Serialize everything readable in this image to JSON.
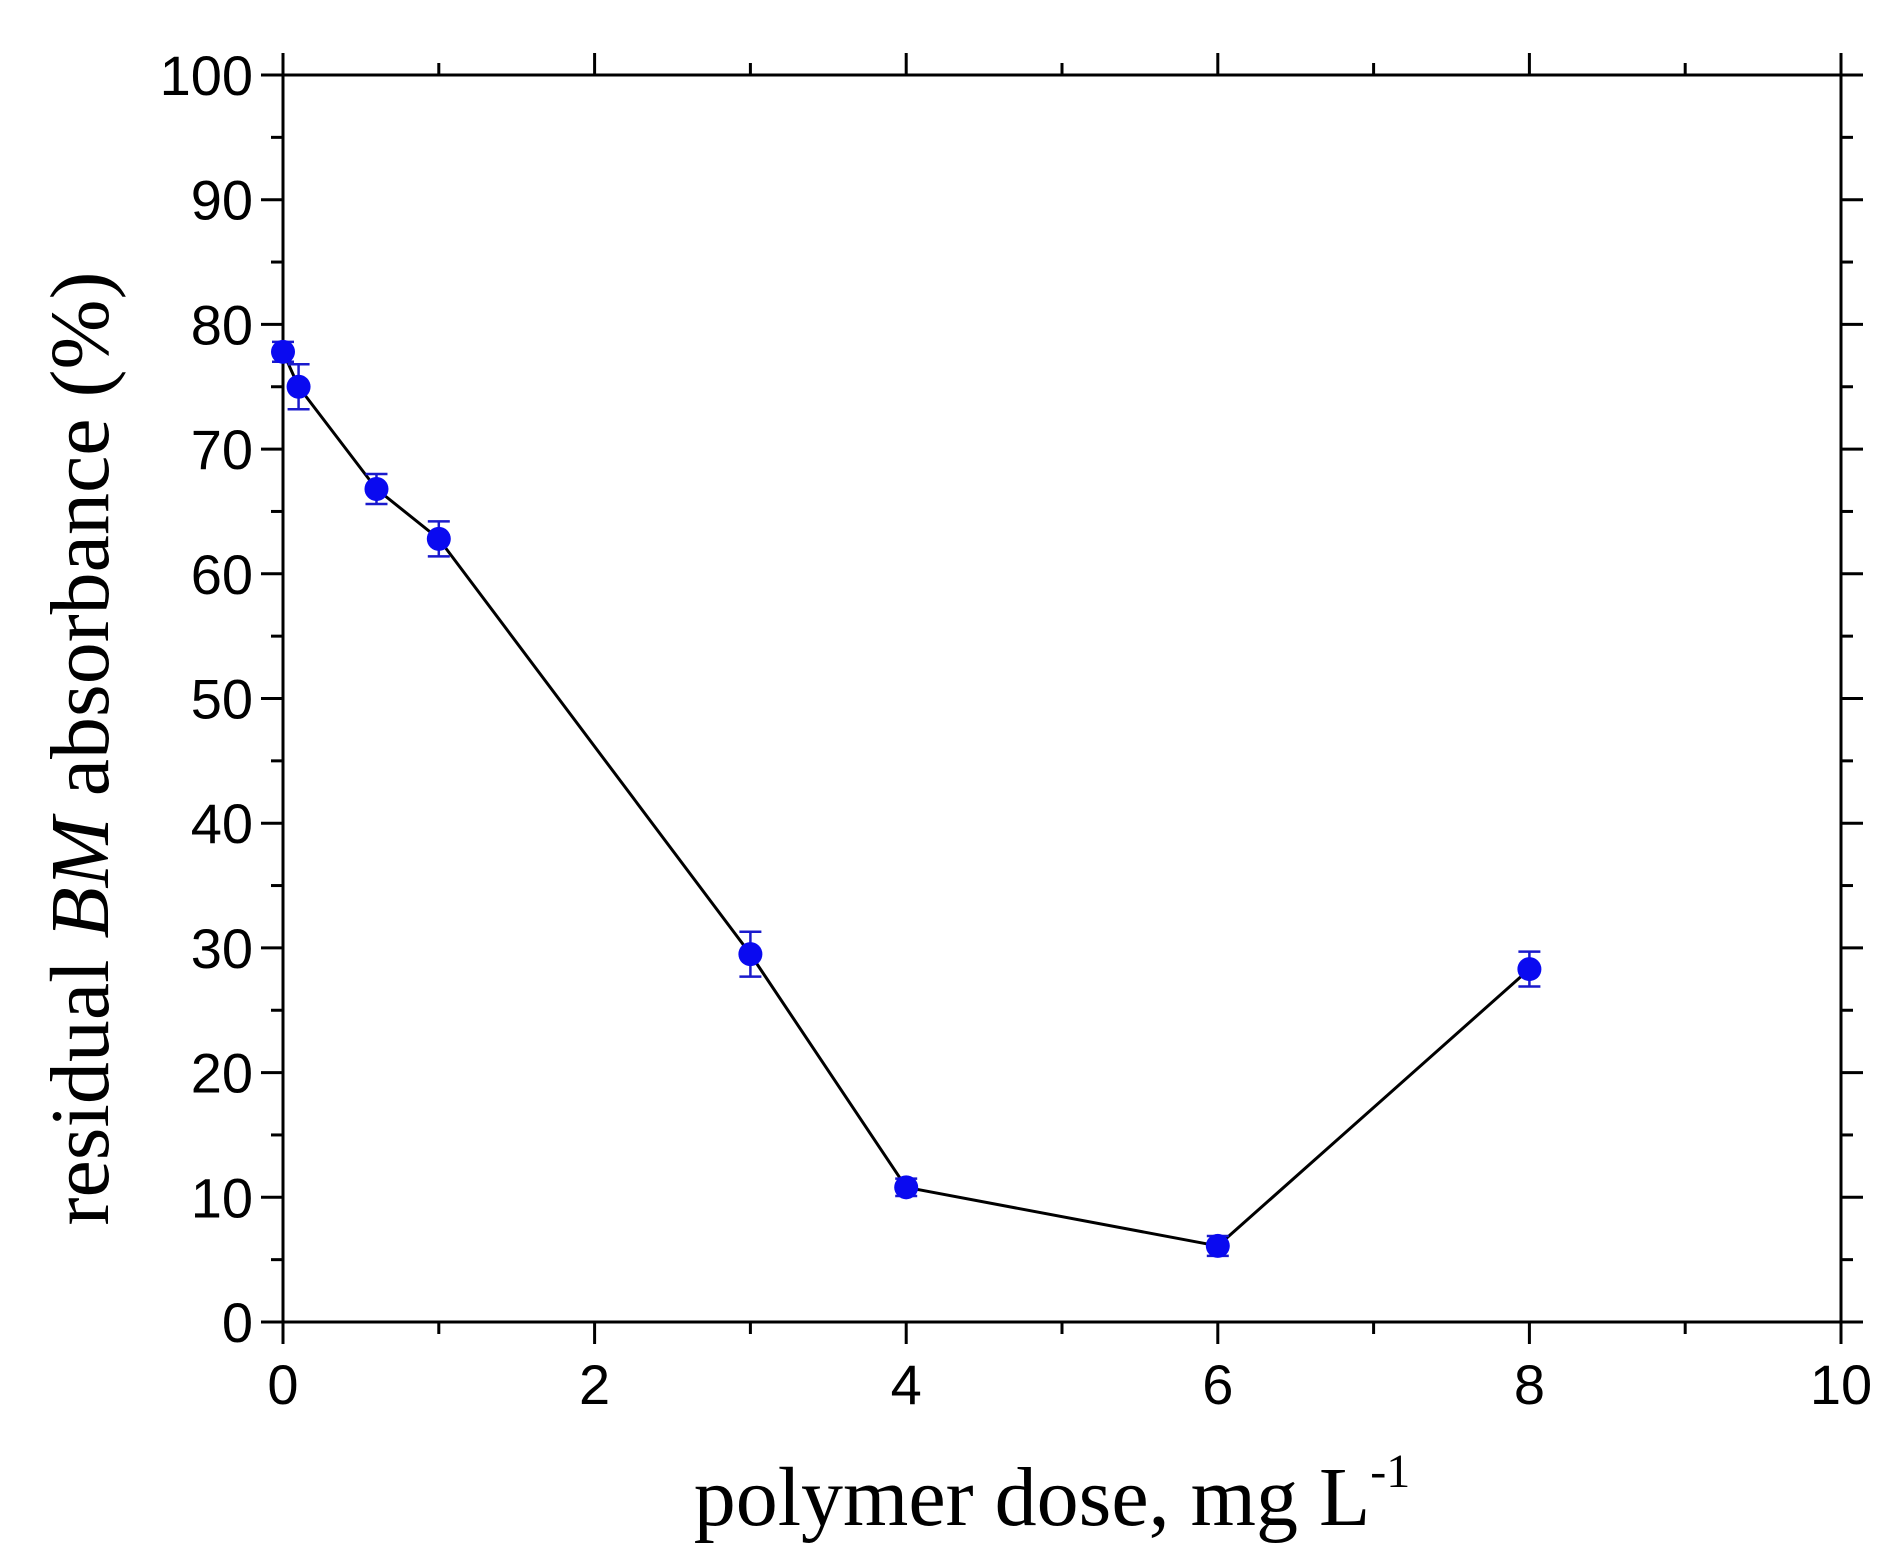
{
  "chart_data": {
    "type": "scatter",
    "title": "",
    "xlabel": {
      "main": "polymer dose, mg L",
      "superscript": "-1"
    },
    "ylabel": {
      "before": "residual ",
      "italic": "BM",
      "after": " absorbance (%)"
    },
    "xlim": [
      0,
      10
    ],
    "ylim": [
      0,
      100
    ],
    "xticks": [
      0,
      2,
      4,
      6,
      8,
      10
    ],
    "yticks": [
      0,
      10,
      20,
      30,
      40,
      50,
      60,
      70,
      80,
      90,
      100
    ],
    "x_minor_step": 1,
    "y_minor_step": 5,
    "grid": false,
    "series": [
      {
        "x": [
          0,
          0.1,
          0.6,
          1,
          3,
          4,
          6,
          8
        ],
        "y": [
          77.8,
          75.0,
          66.8,
          62.8,
          29.5,
          10.8,
          6.1,
          28.3
        ],
        "yerr": [
          0.8,
          1.8,
          1.2,
          1.4,
          1.8,
          0.7,
          0.8,
          1.4
        ],
        "marker_color": "#0a0af0",
        "errorbar_color": "#1a1acc",
        "line_color": "#000000",
        "marker": "circle",
        "connected": true
      }
    ]
  }
}
